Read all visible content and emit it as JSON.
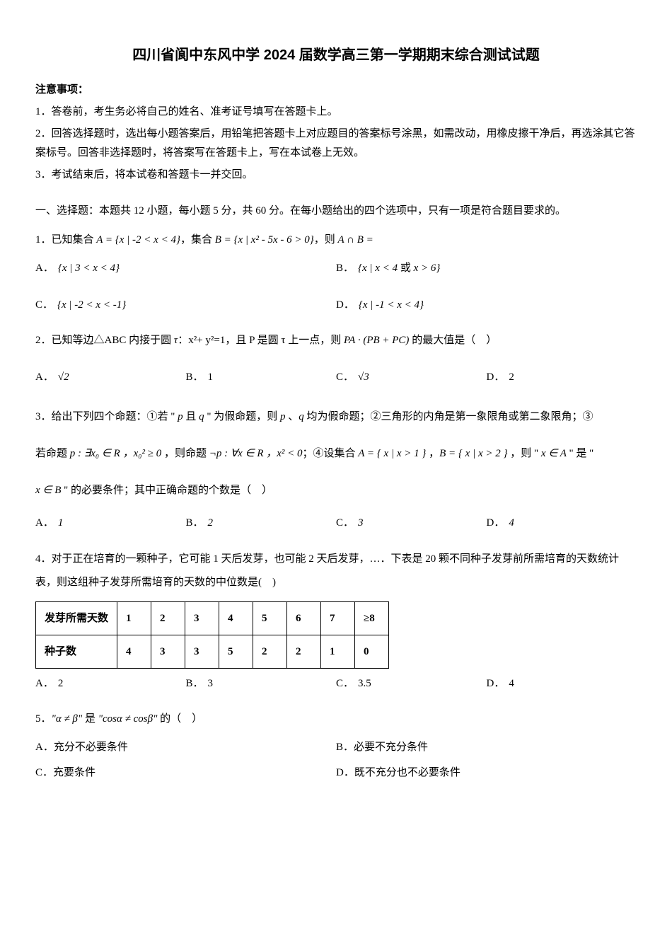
{
  "title": "四川省阆中东风中学 2024 届数学高三第一学期期末综合测试试题",
  "notice": {
    "label": "注意事项：",
    "items": [
      "1．答卷前，考生务必将自己的姓名、准考证号填写在答题卡上。",
      "2．回答选择题时，选出每小题答案后，用铅笔把答题卡上对应题目的答案标号涂黑，如需改动，用橡皮擦干净后，再选涂其它答案标号。回答非选择题时，将答案写在答题卡上，写在本试卷上无效。",
      "3．考试结束后，将本试卷和答题卡一并交回。"
    ]
  },
  "section1": "一、选择题：本题共 12 小题，每小题 5 分，共 60 分。在每小题给出的四个选项中，只有一项是符合题目要求的。",
  "q1": {
    "text_prefix": "1．已知集合 ",
    "setA": "A = {x | -2 < x < 4}",
    "mid1": "，集合 ",
    "setB": "B = {x | x² - 5x - 6 > 0}",
    "mid2": "，则 ",
    "expr": "A ∩ B =",
    "optA_label": "A．",
    "optA": "{x | 3 < x < 4}",
    "optB_label": "B．",
    "optB_pre": "{x | x < 4 ",
    "optB_or": "或",
    "optB_post": " x > 6}",
    "optC_label": "C．",
    "optC": "{x | -2 < x < -1}",
    "optD_label": "D．",
    "optD": "{x | -1 < x < 4}"
  },
  "q2": {
    "text_pre": "2．已知等边△ABC 内接于圆 ",
    "tau": "τ",
    "text_mid1": "：x²+ y²=1，且 P 是圆 τ 上一点，则 ",
    "expr": "PA · (PB + PC)",
    "text_post": " 的最大值是（　）",
    "optA_label": "A．",
    "optA": "√2",
    "optB_label": "B．",
    "optB": "1",
    "optC_label": "C．",
    "optC": "√3",
    "optD_label": "D．",
    "optD": "2"
  },
  "q3": {
    "line1_pre": "3．给出下列四个命题：①若 \"",
    "p1": " p ",
    "and": "且",
    "q1": " q ",
    "line1_mid": "\" 为假命题，则 ",
    "p2": "p",
    "comma": " 、",
    "q2": "q",
    "line1_post": " 均为假命题；②三角形的内角是第一象限角或第二象限角；③",
    "line2_pre": "若命题 ",
    "prop_p": "p : ∃x₀ ∈ R ，x₀² ≥ 0",
    "line2_mid1": " ，则命题 ",
    "prop_np": "¬p : ∀x ∈ R ，x² < 0",
    "line2_mid2": "；④设集合 ",
    "setA": "A = { x | x > 1 }",
    "line2_mid3": " ，",
    "setB": "B = { x | x > 2 }",
    "line2_mid4": " ，则 \"",
    "xinA": " x ∈ A ",
    "line2_post": "\" 是 \"",
    "line3_pre": "",
    "xinB": "x ∈ B",
    "line3_post": " \" 的必要条件；其中正确命题的个数是（　）",
    "optA_label": "A．",
    "optA": "1",
    "optB_label": "B．",
    "optB": "2",
    "optC_label": "C．",
    "optC": "3",
    "optD_label": "D．",
    "optD": "4"
  },
  "q4": {
    "text": "4．对于正在培育的一颗种子，它可能 1 天后发芽，也可能 2 天后发芽，…．下表是 20 颗不同种子发芽前所需培育的天数统计表，则这组种子发芽所需培育的天数的中位数是(　)",
    "table": {
      "row1": [
        "发芽所需天数",
        "1",
        "2",
        "3",
        "4",
        "5",
        "6",
        "7",
        "≥8"
      ],
      "row2": [
        "种子数",
        "4",
        "3",
        "3",
        "5",
        "2",
        "2",
        "1",
        "0"
      ]
    },
    "optA_label": "A．",
    "optA": "2",
    "optB_label": "B．",
    "optB": "3",
    "optC_label": "C．",
    "optC": "3.5",
    "optD_label": "D．",
    "optD": "4"
  },
  "q5": {
    "num": "5．",
    "cond1": "\"α ≠ β\"",
    "is": " 是 ",
    "cond2": "\"cosα ≠ cosβ\"",
    "post": " 的（　）",
    "optA_label": "A．",
    "optA": "充分不必要条件",
    "optB_label": "B．",
    "optB": "必要不充分条件",
    "optC_label": "C．",
    "optC": "充要条件",
    "optD_label": "D．",
    "optD": "既不充分也不必要条件"
  }
}
